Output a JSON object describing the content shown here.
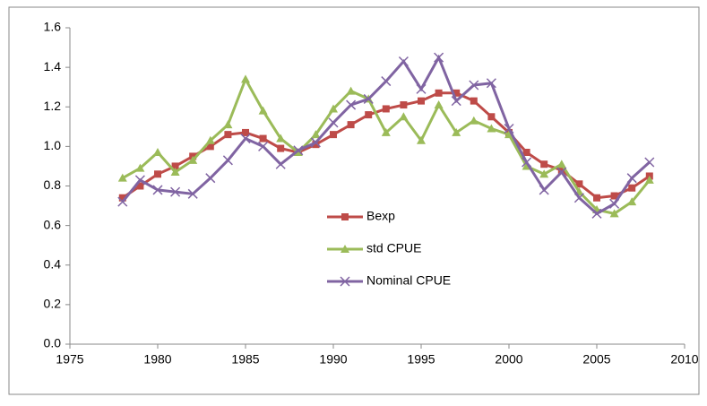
{
  "chart_data": {
    "type": "line",
    "x": [
      1978,
      1979,
      1980,
      1981,
      1982,
      1983,
      1984,
      1985,
      1986,
      1987,
      1988,
      1989,
      1990,
      1991,
      1992,
      1993,
      1994,
      1995,
      1996,
      1997,
      1998,
      1999,
      2000,
      2001,
      2002,
      2003,
      2004,
      2005,
      2006,
      2007,
      2008
    ],
    "series": [
      {
        "name": "Bexp",
        "color": "#be4b48",
        "marker": "square",
        "values": [
          0.74,
          0.8,
          0.86,
          0.9,
          0.95,
          1.0,
          1.06,
          1.07,
          1.04,
          0.99,
          0.97,
          1.01,
          1.06,
          1.11,
          1.16,
          1.19,
          1.21,
          1.23,
          1.27,
          1.27,
          1.23,
          1.15,
          1.07,
          0.97,
          0.91,
          0.88,
          0.81,
          0.74,
          0.75,
          0.79,
          0.85
        ]
      },
      {
        "name": "std CPUE",
        "color": "#9bbb59",
        "marker": "triangle",
        "values": [
          0.84,
          0.89,
          0.97,
          0.87,
          0.93,
          1.03,
          1.11,
          1.34,
          1.18,
          1.04,
          0.97,
          1.06,
          1.19,
          1.28,
          1.24,
          1.07,
          1.15,
          1.03,
          1.21,
          1.07,
          1.13,
          1.09,
          1.06,
          0.9,
          0.86,
          0.91,
          0.77,
          0.68,
          0.66,
          0.72,
          0.83
        ]
      },
      {
        "name": "Nominal CPUE",
        "color": "#8064a2",
        "marker": "x",
        "values": [
          0.72,
          0.83,
          0.78,
          0.77,
          0.76,
          0.84,
          0.93,
          1.04,
          1.0,
          0.91,
          0.98,
          1.02,
          1.12,
          1.21,
          1.24,
          1.33,
          1.43,
          1.29,
          1.45,
          1.23,
          1.31,
          1.32,
          1.09,
          0.92,
          0.78,
          0.87,
          0.74,
          0.66,
          0.71,
          0.84,
          0.92
        ]
      }
    ],
    "xlim": [
      1975,
      2010
    ],
    "xticks": [
      1975,
      1980,
      1985,
      1990,
      1995,
      2000,
      2005,
      2010
    ],
    "ylim": [
      0,
      1.6
    ],
    "yticks": [
      {
        "value": 0,
        "label": "0.0"
      },
      {
        "value": 0.2,
        "label": "0.2"
      },
      {
        "value": 0.4,
        "label": "0.4"
      },
      {
        "value": 0.6,
        "label": "0.6"
      },
      {
        "value": 0.8,
        "label": "0.8"
      },
      {
        "value": 1,
        "label": "1.0"
      },
      {
        "value": 1.2,
        "label": "1.2"
      },
      {
        "value": 1.4,
        "label": "1.4"
      },
      {
        "value": 1.6,
        "label": "1.6"
      }
    ],
    "grid": false,
    "legend": "center"
  }
}
